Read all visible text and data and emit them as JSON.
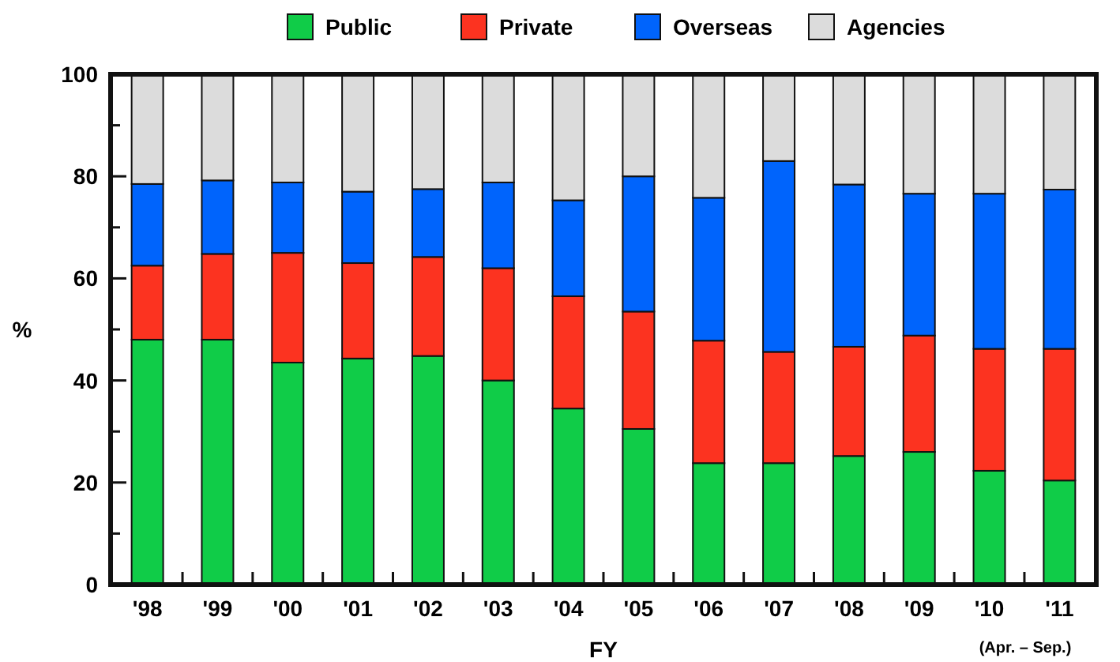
{
  "chart_data": {
    "type": "bar",
    "stacked": true,
    "xlabel": "FY",
    "ylabel": "%",
    "categories": [
      "'98",
      "'99",
      "'00",
      "'01",
      "'02",
      "'03",
      "'04",
      "'05",
      "'06",
      "'07",
      "'08",
      "'09",
      "'10",
      "'11"
    ],
    "series": [
      {
        "name": "Public",
        "color": "#10cc48",
        "values": [
          48,
          48,
          43.5,
          44.3,
          44.8,
          40,
          34.5,
          30.5,
          23.8,
          23.8,
          25.2,
          26,
          22.3,
          20.4
        ]
      },
      {
        "name": "Private",
        "color": "#fc3320",
        "values": [
          14.5,
          16.8,
          21.5,
          18.7,
          19.4,
          22,
          22,
          23,
          24,
          21.8,
          21.4,
          22.8,
          23.9,
          25.8
        ]
      },
      {
        "name": "Overseas",
        "color": "#0064fc",
        "values": [
          16,
          14.4,
          13.8,
          14,
          13.3,
          16.8,
          18.8,
          26.5,
          28,
          37.4,
          31.8,
          27.8,
          30.4,
          31.2
        ]
      },
      {
        "name": "Agencies",
        "color": "#dcdcdc",
        "values": [
          21.5,
          20.8,
          21.2,
          23,
          22.5,
          21.2,
          24.7,
          20,
          24.2,
          17,
          21.6,
          23.4,
          23.4,
          22.6
        ]
      }
    ],
    "ylim": [
      0,
      100
    ],
    "yticks": [
      0,
      {
        "value": 10,
        "label": null
      },
      20,
      {
        "value": 30,
        "label": null
      },
      40,
      {
        "value": 50,
        "label": null
      },
      60,
      {
        "value": 70,
        "label": null
      },
      80,
      {
        "value": 90,
        "label": null
      },
      100
    ],
    "legend": "top",
    "grid": false,
    "annotations": [
      "(Apr. – Sep.)"
    ]
  }
}
